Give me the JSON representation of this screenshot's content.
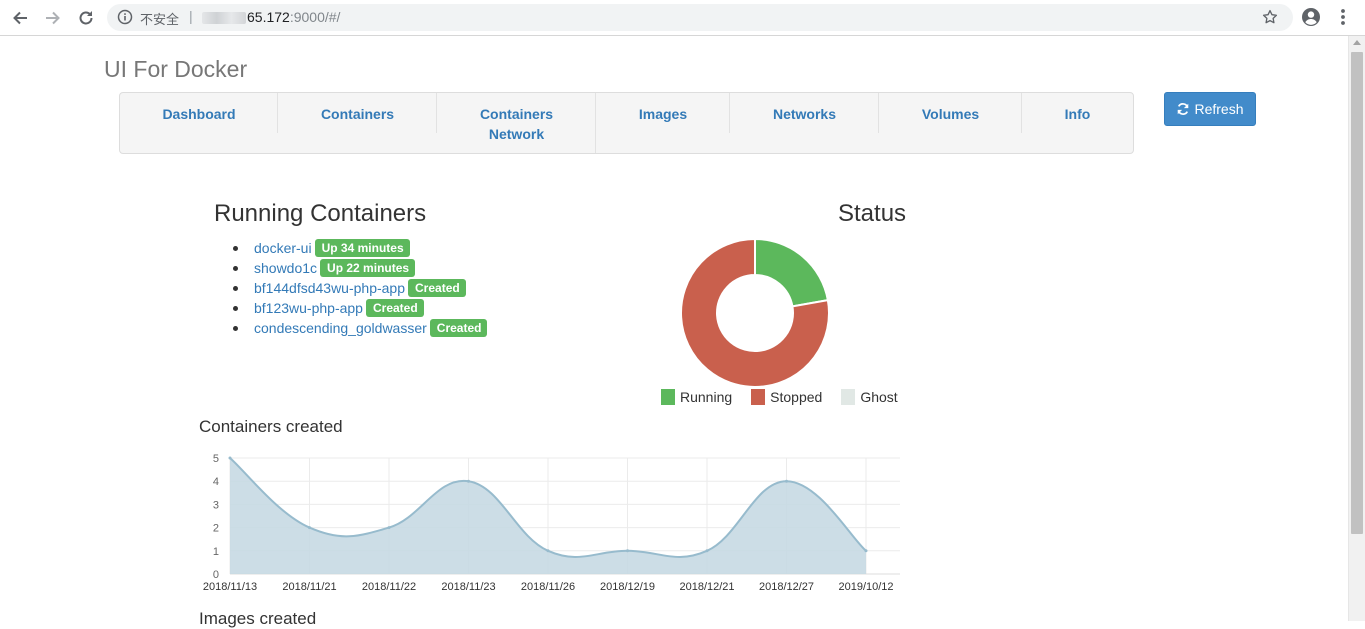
{
  "browser": {
    "security_label": "不安全",
    "url_main": "65.172",
    "url_rest": ":9000/#/"
  },
  "app": {
    "brand": "UI For Docker",
    "nav": [
      {
        "label": "Dashboard"
      },
      {
        "label": "Containers"
      },
      {
        "label": "Containers\nNetwork"
      },
      {
        "label": "Images"
      },
      {
        "label": "Networks"
      },
      {
        "label": "Volumes"
      },
      {
        "label": "Info"
      }
    ],
    "refresh_label": "Refresh"
  },
  "running": {
    "title": "Running Containers",
    "items": [
      {
        "name": "docker-ui",
        "status": "Up 34 minutes"
      },
      {
        "name": "showdo1c",
        "status": "Up 22 minutes"
      },
      {
        "name": "bf144dfsd43wu-php-app",
        "status": "Created"
      },
      {
        "name": "bf123wu-php-app",
        "status": "Created"
      },
      {
        "name": "condescending_goldwasser",
        "status": "Created"
      }
    ]
  },
  "status": {
    "title": "Status",
    "legend": [
      {
        "label": "Running",
        "color": "#5cb85c"
      },
      {
        "label": "Stopped",
        "color": "#c9604d"
      },
      {
        "label": "Ghost",
        "color": "#e1e8e5"
      }
    ]
  },
  "containers_created": {
    "title": "Containers created"
  },
  "images_created": {
    "title": "Images created"
  },
  "chart_data": [
    {
      "type": "pie",
      "title": "Status",
      "labels": [
        "Running",
        "Stopped",
        "Ghost"
      ],
      "values": [
        2,
        7,
        0
      ],
      "colors": [
        "#5cb85c",
        "#c9604d",
        "#e1e8e5"
      ],
      "donut": true,
      "legend": "bottom"
    },
    {
      "type": "area",
      "title": "Containers created",
      "categories": [
        "2018/11/13",
        "2018/11/21",
        "2018/11/22",
        "2018/11/23",
        "2018/11/26",
        "2018/12/19",
        "2018/12/21",
        "2018/12/27",
        "2019/10/12"
      ],
      "values": [
        5,
        2,
        2,
        4,
        1,
        1,
        1,
        4,
        1
      ],
      "yticks": [
        "0",
        "1",
        "2",
        "3",
        "4",
        "5"
      ],
      "ylim": [
        0,
        5
      ],
      "grid": true,
      "line_color": "#97bbcd",
      "fill_color": "#c7d9e3"
    }
  ]
}
